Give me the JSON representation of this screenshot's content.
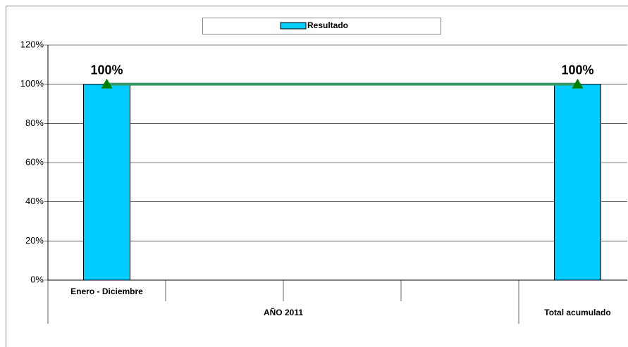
{
  "chart_data": {
    "type": "bar",
    "categories": [
      "Enero - Diciembre",
      null,
      null,
      null,
      null
    ],
    "category_groups": [
      {
        "label": "AÑO 2011",
        "span": 4
      },
      {
        "label": "Total acumulado",
        "span": 1
      }
    ],
    "series": [
      {
        "name": "Resultado",
        "type": "bar",
        "color": "#00ccff",
        "values": [
          100,
          null,
          null,
          null,
          100
        ],
        "value_labels": [
          "100%",
          null,
          null,
          null,
          "100%"
        ]
      },
      {
        "type": "line",
        "color": "#339966",
        "marker_color": "#008000",
        "values": [
          100,
          null,
          null,
          null,
          100
        ],
        "connect_gaps": true
      }
    ],
    "ylim": [
      0,
      120
    ],
    "yticks": [
      {
        "value": 0,
        "label": "0%"
      },
      {
        "value": 20,
        "label": "20%"
      },
      {
        "value": 40,
        "label": "40%"
      },
      {
        "value": 60,
        "label": "60%"
      },
      {
        "value": 80,
        "label": "80%"
      },
      {
        "value": 100,
        "label": "100%"
      },
      {
        "value": 120,
        "label": "120%"
      }
    ],
    "grid": true,
    "legend": "top"
  }
}
